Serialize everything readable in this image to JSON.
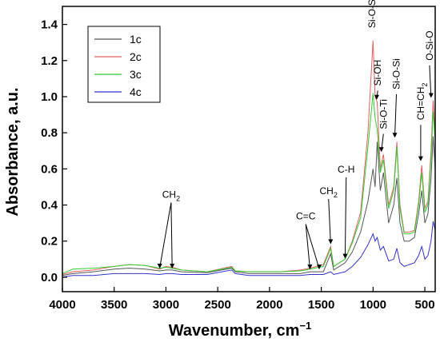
{
  "chart_data": {
    "type": "line",
    "title": "",
    "xlabel": "Wavenumber, cm",
    "xlabel_sup": "−1",
    "ylabel": "Absorbance, a.u.",
    "xlim": [
      4000,
      400
    ],
    "ylim": [
      -0.08,
      1.5
    ],
    "x_reversed": true,
    "xticks": [
      4000,
      3500,
      3000,
      2500,
      2000,
      1500,
      1000,
      500
    ],
    "xtick_labels": [
      "4000",
      "3500",
      "3000",
      "2500",
      "2000",
      "1500",
      "1000",
      "500"
    ],
    "yticks": [
      0.0,
      0.2,
      0.4,
      0.6,
      0.8,
      1.0,
      1.2,
      1.4
    ],
    "ytick_labels": [
      "0.0",
      "0.2",
      "0.4",
      "0.6",
      "0.8",
      "1.0",
      "1.2",
      "1.4"
    ],
    "grid": false,
    "legend_position": "top-left",
    "series": [
      {
        "name": "1c",
        "color": "#555555",
        "x": [
          4000,
          3900,
          3700,
          3500,
          3350,
          3200,
          3060,
          3000,
          2940,
          2850,
          2600,
          2365,
          2330,
          2200,
          1900,
          1700,
          1610,
          1480,
          1410,
          1380,
          1270,
          1200,
          1120,
          1050,
          1000,
          980,
          960,
          930,
          900,
          850,
          800,
          770,
          740,
          700,
          650,
          600,
          560,
          530,
          500,
          470,
          440,
          420,
          400
        ],
        "y": [
          0.01,
          0.02,
          0.03,
          0.045,
          0.05,
          0.045,
          0.035,
          0.04,
          0.04,
          0.03,
          0.025,
          0.05,
          0.03,
          0.02,
          0.02,
          0.02,
          0.03,
          0.03,
          0.13,
          0.04,
          0.08,
          0.14,
          0.25,
          0.42,
          0.6,
          0.5,
          0.75,
          0.48,
          0.58,
          0.3,
          0.4,
          0.55,
          0.3,
          0.2,
          0.2,
          0.22,
          0.35,
          0.48,
          0.3,
          0.35,
          0.55,
          0.78,
          0.6
        ]
      },
      {
        "name": "2c",
        "color": "#e06060",
        "x": [
          4000,
          3900,
          3700,
          3500,
          3350,
          3200,
          3060,
          3000,
          2940,
          2850,
          2600,
          2365,
          2330,
          2200,
          1900,
          1700,
          1610,
          1480,
          1410,
          1380,
          1270,
          1200,
          1120,
          1050,
          1000,
          980,
          960,
          930,
          900,
          850,
          800,
          770,
          740,
          700,
          650,
          600,
          560,
          530,
          500,
          470,
          440,
          420,
          400
        ],
        "y": [
          0.015,
          0.03,
          0.04,
          0.06,
          0.07,
          0.065,
          0.045,
          0.06,
          0.055,
          0.04,
          0.03,
          0.06,
          0.035,
          0.03,
          0.03,
          0.04,
          0.05,
          0.07,
          0.17,
          0.06,
          0.1,
          0.2,
          0.36,
          0.8,
          1.31,
          1.0,
          0.97,
          0.6,
          0.68,
          0.4,
          0.5,
          0.75,
          0.4,
          0.25,
          0.25,
          0.26,
          0.42,
          0.62,
          0.38,
          0.42,
          0.7,
          0.98,
          0.8
        ]
      },
      {
        "name": "3c",
        "color": "#33cc33",
        "x": [
          4000,
          3900,
          3700,
          3500,
          3350,
          3200,
          3060,
          3000,
          2940,
          2850,
          2600,
          2365,
          2330,
          2200,
          1900,
          1700,
          1610,
          1480,
          1410,
          1380,
          1270,
          1200,
          1120,
          1050,
          1000,
          980,
          960,
          930,
          900,
          850,
          800,
          770,
          740,
          700,
          650,
          600,
          560,
          530,
          500,
          470,
          440,
          420,
          400
        ],
        "y": [
          0.02,
          0.045,
          0.05,
          0.06,
          0.07,
          0.065,
          0.05,
          0.055,
          0.05,
          0.04,
          0.03,
          0.055,
          0.035,
          0.03,
          0.03,
          0.035,
          0.045,
          0.06,
          0.16,
          0.06,
          0.1,
          0.19,
          0.33,
          0.72,
          1.02,
          0.88,
          0.82,
          0.58,
          0.65,
          0.38,
          0.48,
          0.72,
          0.38,
          0.24,
          0.24,
          0.25,
          0.4,
          0.58,
          0.36,
          0.4,
          0.66,
          0.92,
          0.75
        ]
      },
      {
        "name": "4c",
        "color": "#3333cc",
        "x": [
          4000,
          3900,
          3700,
          3500,
          3350,
          3200,
          3060,
          3000,
          2940,
          2850,
          2600,
          2365,
          2330,
          2200,
          1900,
          1700,
          1610,
          1480,
          1410,
          1380,
          1270,
          1200,
          1120,
          1050,
          1000,
          980,
          960,
          930,
          900,
          850,
          800,
          770,
          740,
          700,
          650,
          600,
          560,
          530,
          500,
          470,
          440,
          420,
          400
        ],
        "y": [
          0.0,
          0.01,
          0.01,
          0.02,
          0.02,
          0.02,
          0.015,
          0.02,
          0.02,
          0.015,
          0.015,
          0.04,
          0.02,
          0.01,
          0.01,
          0.01,
          0.015,
          0.015,
          0.03,
          0.015,
          0.03,
          0.06,
          0.11,
          0.18,
          0.24,
          0.2,
          0.22,
          0.15,
          0.17,
          0.09,
          0.1,
          0.16,
          0.08,
          0.06,
          0.07,
          0.08,
          0.12,
          0.17,
          0.1,
          0.12,
          0.2,
          0.31,
          0.26
        ]
      }
    ],
    "annotations": [
      {
        "text": "CH",
        "sub": "2",
        "x": 2950,
        "y": 0.44,
        "arrows": [
          [
            3060,
            0.035
          ],
          [
            2940,
            0.035
          ]
        ]
      },
      {
        "text": "C=C",
        "sub": "",
        "x": 1650,
        "y": 0.32,
        "arrows": [
          [
            1610,
            0.03
          ],
          [
            1520,
            0.03
          ]
        ]
      },
      {
        "text": "CH",
        "sub": "2",
        "x": 1430,
        "y": 0.46,
        "arrows": [
          [
            1410,
            0.17
          ]
        ]
      },
      {
        "text": "C-H",
        "sub": "",
        "x": 1260,
        "y": 0.58,
        "arrows": [
          [
            1270,
            0.09
          ]
        ]
      },
      {
        "text": "Si-O-Si",
        "sub": "",
        "x": 1010,
        "y": 1.38,
        "rotate": true,
        "arrows": []
      },
      {
        "text": "Si-OH",
        "sub": "",
        "x": 955,
        "y": 1.06,
        "rotate": true,
        "arrows": [
          [
            965,
            0.97
          ]
        ]
      },
      {
        "text": "Si-O-Ti",
        "sub": "",
        "x": 900,
        "y": 0.82,
        "rotate": true,
        "arrows": [
          [
            920,
            0.68
          ]
        ]
      },
      {
        "text": "Si-O-Si",
        "sub": "",
        "x": 775,
        "y": 1.04,
        "rotate": true,
        "arrows": [
          [
            790,
            0.76
          ]
        ]
      },
      {
        "text": "CH=CH",
        "sub": "2",
        "x": 540,
        "y": 0.87,
        "rotate": true,
        "arrows": [
          [
            540,
            0.63
          ]
        ]
      },
      {
        "text": "O-Si-O",
        "sub": "",
        "x": 455,
        "y": 1.2,
        "rotate": true,
        "arrows": [
          [
            440,
            0.98
          ]
        ]
      }
    ]
  }
}
